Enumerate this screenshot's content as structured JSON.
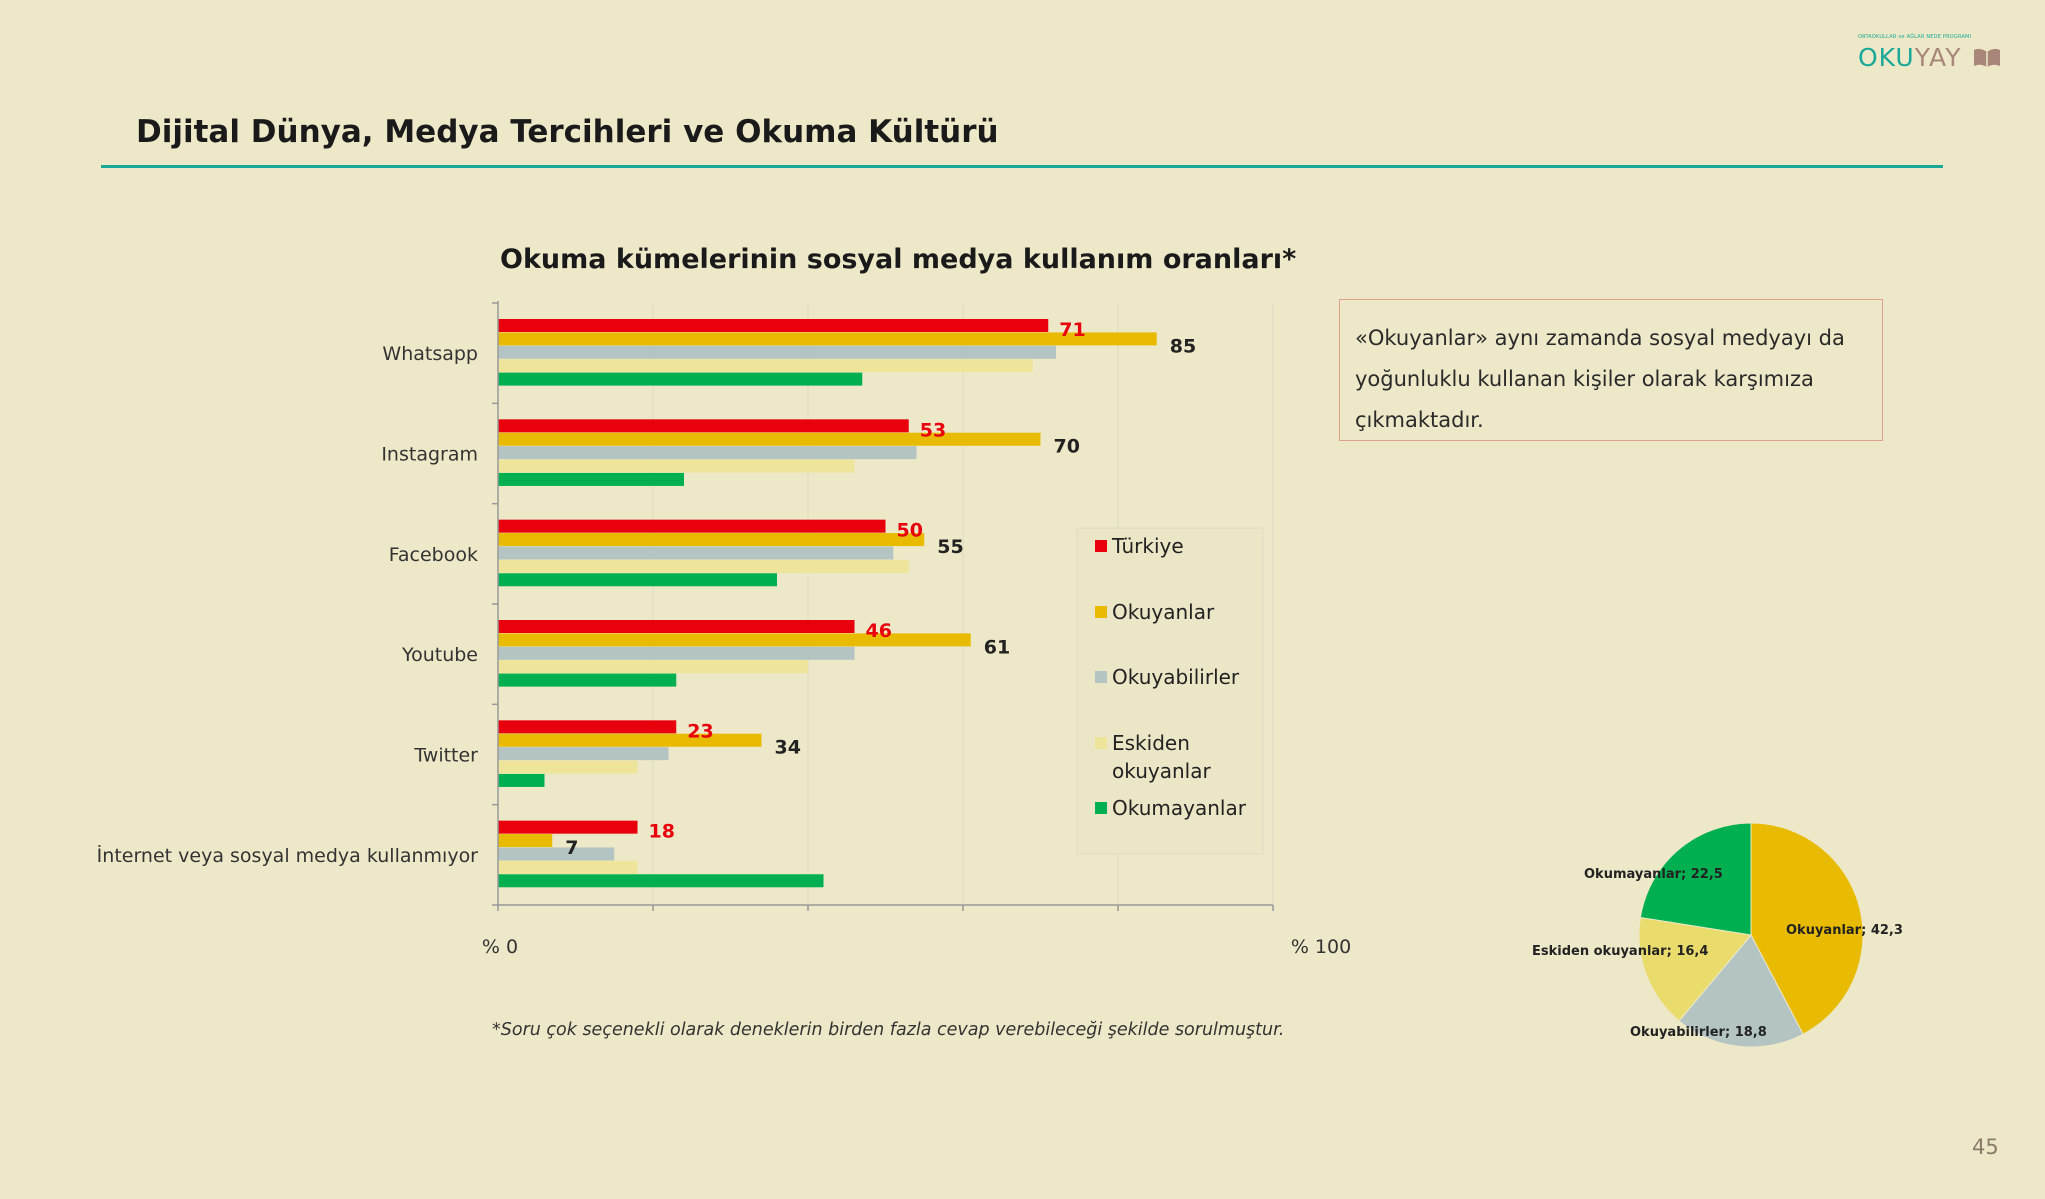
{
  "logo": {
    "tagline": "ORTAOKULLAR ve AĞLAR NEDE PROGRAMI",
    "part1": "OKU",
    "part2": "YAY"
  },
  "page_title": "Dijital Dünya, Medya Tercihleri ve Okuma Kültürü",
  "note": "«Okuyanlar» aynı zamanda sosyal medyayı da yoğunluklu kullanan kişiler olarak karşımıza çıkmaktadır.",
  "footnote": "*Soru çok seçenekli olarak deneklerin birden fazla cevap verebileceği şekilde sorulmuştur.",
  "page_number": "45",
  "colors": {
    "turkiye": "#e8000c",
    "okuyanlar": "#e9bb00",
    "okuyabilirler": "#b4c4c2",
    "eskiden": "#eee59a",
    "okumayanlar": "#00b050",
    "accent": "#1aa898"
  },
  "chart_data": [
    {
      "type": "bar",
      "orientation": "horizontal",
      "title": "Okuma kümelerinin sosyal medya kullanım oranları*",
      "categories": [
        "Whatsapp",
        "Instagram",
        "Facebook",
        "Youtube",
        "Twitter",
        "İnternet veya sosyal medya kullanmıyor"
      ],
      "series": [
        {
          "name": "Türkiye",
          "values": [
            71,
            53,
            50,
            46,
            23,
            18
          ],
          "color": "#e8000c"
        },
        {
          "name": "Okuyanlar",
          "values": [
            85,
            70,
            55,
            61,
            34,
            7
          ],
          "color": "#e9bb00"
        },
        {
          "name": "Okuyabilirler",
          "values": [
            72,
            54,
            51,
            46,
            22,
            15
          ],
          "color": "#b4c4c2"
        },
        {
          "name": "Eskiden okuyanlar",
          "values": [
            69,
            46,
            53,
            40,
            18,
            18
          ],
          "color": "#eee59a"
        },
        {
          "name": "Okumayanlar",
          "values": [
            47,
            24,
            36,
            23,
            6,
            42
          ],
          "color": "#00b050"
        }
      ],
      "data_labels": {
        "Türkiye": [
          71,
          53,
          50,
          46,
          23,
          18
        ],
        "Okuyanlar": [
          85,
          70,
          55,
          61,
          34,
          7
        ]
      },
      "x_tick_labels": [
        "% 0",
        "% 100"
      ],
      "xlim": [
        0,
        100
      ],
      "grid": true,
      "legend_position": "right-inside"
    },
    {
      "type": "pie",
      "slices": [
        {
          "label": "Okuyanlar; 42,3",
          "value": 42.3,
          "color": "#e9bb00"
        },
        {
          "label": "Okuyabilirler; 18,8",
          "value": 18.8,
          "color": "#b4c4c2"
        },
        {
          "label": "Eskiden okuyanlar; 16,4",
          "value": 16.4,
          "color": "#e9dc6c"
        },
        {
          "label": "Okumayanlar; 22,5",
          "value": 22.5,
          "color": "#00b050"
        }
      ]
    }
  ]
}
